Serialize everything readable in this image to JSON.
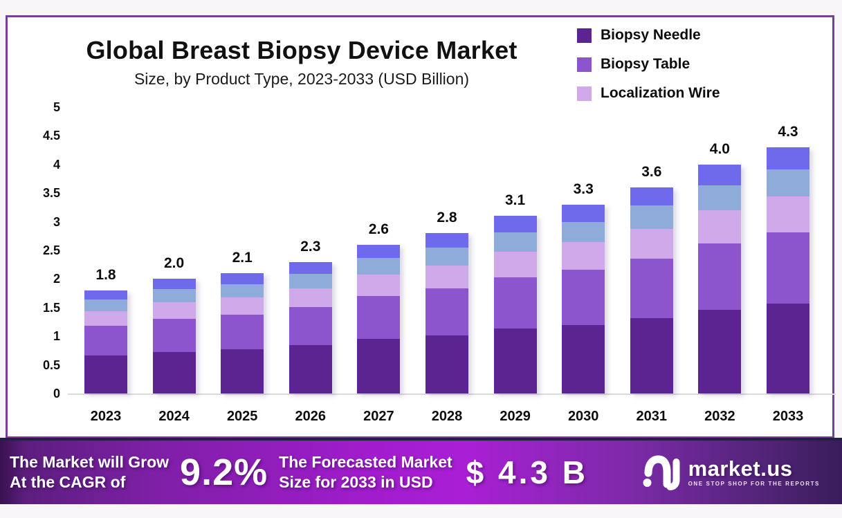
{
  "chart_data": {
    "type": "bar",
    "stacked": true,
    "title": "Global Breast Biopsy Device Market",
    "subtitle": "Size, by Product Type, 2023-2033 (USD Billion)",
    "categories": [
      "2023",
      "2024",
      "2025",
      "2026",
      "2027",
      "2028",
      "2029",
      "2030",
      "2031",
      "2032",
      "2033"
    ],
    "series": [
      {
        "name": "Biopsy Needle",
        "color": "#5b2490",
        "values": [
          0.66,
          0.73,
          0.77,
          0.84,
          0.95,
          1.02,
          1.13,
          1.2,
          1.32,
          1.46,
          1.57
        ]
      },
      {
        "name": "Biopsy Table",
        "color": "#8c55cd",
        "values": [
          0.52,
          0.58,
          0.61,
          0.67,
          0.75,
          0.81,
          0.9,
          0.96,
          1.04,
          1.16,
          1.25
        ]
      },
      {
        "name": "Localization Wire",
        "color": "#cfa9e9",
        "values": [
          0.26,
          0.29,
          0.3,
          0.33,
          0.38,
          0.41,
          0.45,
          0.48,
          0.52,
          0.58,
          0.62
        ]
      },
      {
        "name": "unlabeled-segment-4",
        "color": "#8fabd9",
        "values": [
          0.2,
          0.22,
          0.23,
          0.25,
          0.29,
          0.31,
          0.34,
          0.36,
          0.4,
          0.44,
          0.47
        ]
      },
      {
        "name": "unlabeled-segment-5",
        "color": "#6f6aeb",
        "values": [
          0.16,
          0.18,
          0.19,
          0.21,
          0.23,
          0.25,
          0.28,
          0.3,
          0.32,
          0.36,
          0.39
        ]
      }
    ],
    "totals": [
      "1.8",
      "2.0",
      "2.1",
      "2.3",
      "2.6",
      "2.8",
      "3.1",
      "3.3",
      "3.6",
      "4.0",
      "4.3"
    ],
    "y_ticks": [
      "5",
      "4.5",
      "4",
      "3.5",
      "3",
      "2.5",
      "2",
      "1.5",
      "1",
      "0.5",
      "0"
    ],
    "ylim": [
      0,
      5
    ],
    "grid": false,
    "legend_position": "top-right"
  },
  "legend": {
    "items": [
      {
        "label": "Biopsy Needle",
        "color": "#5b2490"
      },
      {
        "label": "Biopsy Table",
        "color": "#8c55cd"
      },
      {
        "label": "Localization Wire",
        "color": "#cfa9e9"
      }
    ]
  },
  "banner": {
    "cagr_label_line1": "The Market will Grow",
    "cagr_label_line2": "At the CAGR of",
    "cagr_value": "9.2%",
    "forecast_label_line1": "The Forecasted Market",
    "forecast_label_line2": "Size for 2033 in USD",
    "forecast_value": "$ 4.3 B",
    "logo_text": "market.us",
    "logo_tagline": "ONE STOP SHOP FOR THE REPORTS"
  },
  "colors": {
    "chart_border": "#7b3d9b",
    "axis_line": "#dadada",
    "banner_left": "#7e1fa6",
    "banner_mid": "#aa1fd6",
    "banner_right": "#3a1c5c"
  }
}
